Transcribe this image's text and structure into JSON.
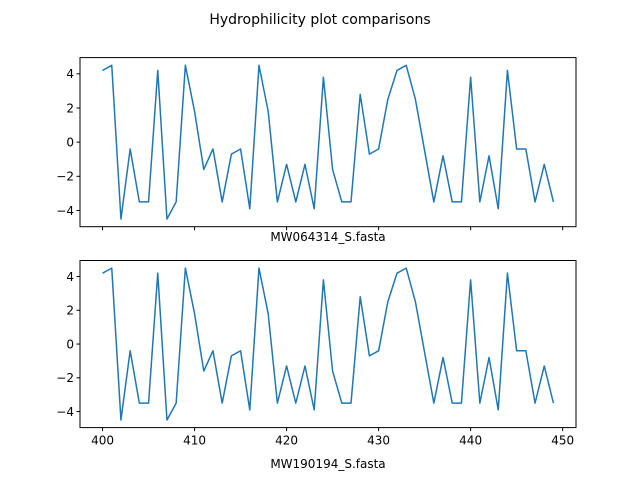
{
  "figure": {
    "title": "Hydrophilicity plot comparisons"
  },
  "chart_data": [
    {
      "type": "line",
      "title": "",
      "xlabel": "MW064314_S.fasta",
      "ylabel": "",
      "xlim": [
        397.55,
        451.45
      ],
      "ylim": [
        -4.95,
        4.95
      ],
      "xticks": [
        400,
        410,
        420,
        430,
        440,
        450
      ],
      "show_xtick_labels": false,
      "yticks": [
        -4,
        -2,
        0,
        2,
        4
      ],
      "grid": false,
      "series": [
        {
          "color": "#1f77b4",
          "x": [
            400,
            401,
            402,
            403,
            404,
            405,
            406,
            407,
            408,
            409,
            410,
            411,
            412,
            413,
            414,
            415,
            416,
            417,
            418,
            419,
            420,
            421,
            422,
            423,
            424,
            425,
            426,
            427,
            428,
            429,
            430,
            431,
            432,
            433,
            434,
            435,
            436,
            437,
            438,
            439,
            440,
            441,
            442,
            443,
            444,
            445,
            446,
            447,
            448,
            449
          ],
          "values": [
            4.2,
            4.5,
            -4.5,
            -0.4,
            -3.5,
            -3.5,
            4.2,
            -4.5,
            -3.5,
            4.5,
            1.8,
            -1.6,
            -0.4,
            -3.5,
            -0.7,
            -0.4,
            -3.9,
            4.5,
            1.8,
            -3.5,
            -1.3,
            -3.5,
            -1.3,
            -3.9,
            3.8,
            -1.6,
            -3.5,
            -3.5,
            2.8,
            -0.7,
            -0.4,
            2.5,
            4.2,
            4.5,
            2.5,
            -0.5,
            -3.5,
            -0.8,
            -3.5,
            -3.5,
            3.8,
            -3.5,
            -0.8,
            -3.9,
            4.2,
            -0.4,
            -0.4,
            -3.5,
            -1.3,
            -3.5
          ]
        }
      ]
    },
    {
      "type": "line",
      "title": "",
      "xlabel": "MW190194_S.fasta",
      "ylabel": "",
      "xlim": [
        397.55,
        451.45
      ],
      "ylim": [
        -4.95,
        4.95
      ],
      "xticks": [
        400,
        410,
        420,
        430,
        440,
        450
      ],
      "show_xtick_labels": true,
      "yticks": [
        -4,
        -2,
        0,
        2,
        4
      ],
      "grid": false,
      "series": [
        {
          "color": "#1f77b4",
          "x": [
            400,
            401,
            402,
            403,
            404,
            405,
            406,
            407,
            408,
            409,
            410,
            411,
            412,
            413,
            414,
            415,
            416,
            417,
            418,
            419,
            420,
            421,
            422,
            423,
            424,
            425,
            426,
            427,
            428,
            429,
            430,
            431,
            432,
            433,
            434,
            435,
            436,
            437,
            438,
            439,
            440,
            441,
            442,
            443,
            444,
            445,
            446,
            447,
            448,
            449
          ],
          "values": [
            4.2,
            4.5,
            -4.5,
            -0.4,
            -3.5,
            -3.5,
            4.2,
            -4.5,
            -3.5,
            4.5,
            1.8,
            -1.6,
            -0.4,
            -3.5,
            -0.7,
            -0.4,
            -3.9,
            4.5,
            1.8,
            -3.5,
            -1.3,
            -3.5,
            -1.3,
            -3.9,
            3.8,
            -1.6,
            -3.5,
            -3.5,
            2.8,
            -0.7,
            -0.4,
            2.5,
            4.2,
            4.5,
            2.5,
            -0.5,
            -3.5,
            -0.8,
            -3.5,
            -3.5,
            3.8,
            -3.5,
            -0.8,
            -3.9,
            4.2,
            -0.4,
            -0.4,
            -3.5,
            -1.3,
            -3.5
          ]
        }
      ]
    }
  ]
}
